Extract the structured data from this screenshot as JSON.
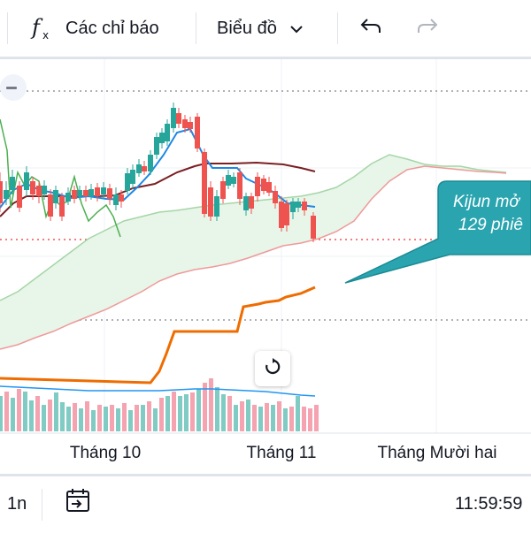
{
  "toolbar": {
    "indicators_icon": "function-fx-icon",
    "indicators_label": "Các chỉ báo",
    "chart_type_label": "Biểu đồ",
    "chart_type_icon": "chevron-down-icon",
    "undo_icon": "undo-arrow-icon",
    "redo_icon": "redo-arrow-icon"
  },
  "tooltip": {
    "line1": "Kijun mở",
    "line2": "129 phiê"
  },
  "time_axis": {
    "labels": [
      "Tháng 10",
      "Tháng 11",
      "Tháng Mười hai"
    ]
  },
  "bottom_bar": {
    "interval_label": "1n",
    "goto_date_icon": "calendar-goto-icon",
    "clock": "11:59:59"
  },
  "colors": {
    "up": "#26a69a",
    "down": "#ef5350",
    "vol_up": "#80cbc4",
    "vol_down": "#f5a3b0",
    "kijun": "#ef6c00",
    "tenkan": "#1e88e5",
    "baseline_dark": "#7b1f23",
    "lagging": "#4caf50",
    "cloud_fill": "#e8f5e9",
    "span_a": "#a5d6a7",
    "span_b": "#ef9a9a",
    "tooltip_bg": "#2aa5b0"
  }
}
